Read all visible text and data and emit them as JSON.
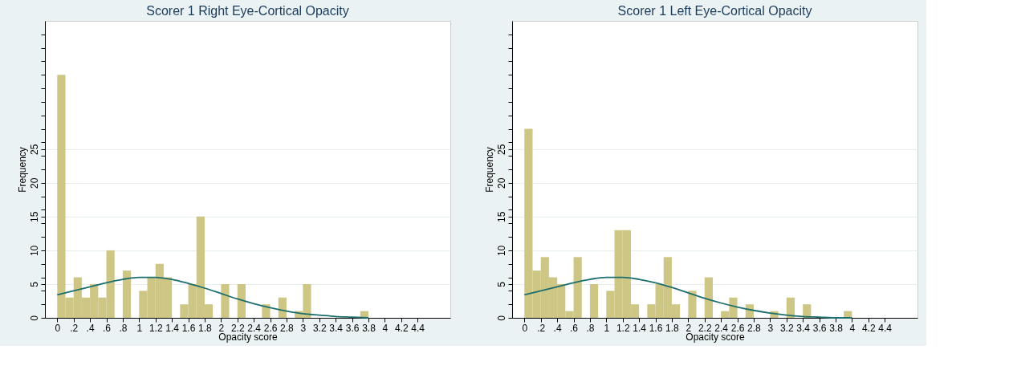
{
  "chart_data": [
    {
      "type": "histogram",
      "title": "Scorer 1 Right Eye-Cortical Opacity",
      "xlabel": "Opacity score",
      "ylabel": "Frequency",
      "bins": [
        0,
        0.1,
        0.2,
        0.3,
        0.4,
        0.5,
        0.6,
        0.7,
        0.8,
        0.9,
        1.0,
        1.1,
        1.2,
        1.3,
        1.4,
        1.5,
        1.6,
        1.7,
        1.8,
        1.9,
        2.0,
        2.1,
        2.2,
        2.3,
        2.4,
        2.5,
        2.6,
        2.7,
        2.8,
        2.9,
        3.0,
        3.1,
        3.2,
        3.3,
        3.4,
        3.5,
        3.6,
        3.7,
        3.8
      ],
      "values": [
        36,
        3,
        6,
        3,
        5,
        3,
        10,
        0,
        7,
        0,
        4,
        6,
        8,
        6,
        0,
        2,
        5,
        15,
        2,
        0,
        5,
        0,
        5,
        0,
        0,
        2,
        0,
        3,
        0,
        1,
        5,
        0,
        0,
        0,
        0,
        0,
        0,
        1
      ],
      "color": "#cdc684",
      "series": [
        {
          "type": "line",
          "color": "#1e6e6e",
          "x": [
            0,
            0.2,
            0.4,
            0.6,
            0.8,
            1.0,
            1.2,
            1.4,
            1.6,
            1.8,
            2.0,
            2.2,
            2.4,
            2.6,
            2.8,
            3.0,
            3.2,
            3.4,
            3.6,
            3.8
          ],
          "values": [
            3.4,
            4.0,
            4.6,
            5.2,
            5.7,
            6.0,
            6.0,
            5.7,
            5.1,
            4.4,
            3.6,
            2.8,
            2.1,
            1.5,
            1.0,
            0.6,
            0.4,
            0.2,
            0.1,
            0.0
          ]
        }
      ],
      "xlim": [
        -0.15,
        4.8
      ],
      "xticks": [
        0,
        {
          "value": 0.2,
          "label": ".2"
        },
        {
          "value": 0.4,
          "label": ".4"
        },
        {
          "value": 0.6,
          "label": ".6"
        },
        {
          "value": 0.8,
          "label": ".8"
        },
        1,
        1.2,
        1.4,
        1.6,
        1.8,
        2,
        2.2,
        2.4,
        2.6,
        2.8,
        3,
        3.2,
        3.4,
        3.6,
        3.8,
        4,
        4.2,
        4.4
      ],
      "ylim": [
        0,
        44
      ],
      "yticks": [
        0,
        {
          "value": 2,
          "label": null
        },
        {
          "value": 4,
          "label": null
        },
        5,
        {
          "value": 6,
          "label": null
        },
        {
          "value": 8,
          "label": null
        },
        10,
        {
          "value": 12,
          "label": null
        },
        {
          "value": 14,
          "label": null
        },
        15,
        {
          "value": 16,
          "label": null
        },
        {
          "value": 18,
          "label": null
        },
        20,
        {
          "value": 22,
          "label": null
        },
        {
          "value": 24,
          "label": null
        },
        25,
        {
          "value": 26,
          "label": null
        },
        {
          "value": 28,
          "label": null
        },
        {
          "value": 30,
          "label": null
        },
        {
          "value": 32,
          "label": null
        },
        {
          "value": 34,
          "label": null
        },
        {
          "value": 36,
          "label": null
        },
        {
          "value": 38,
          "label": null
        },
        {
          "value": 40,
          "label": null
        },
        {
          "value": 42,
          "label": null
        }
      ],
      "grid": "y"
    },
    {
      "type": "histogram",
      "title": "Scorer 1 Left  Eye-Cortical Opacity",
      "xlabel": "Opacity score",
      "ylabel": "Frequency",
      "bins": [
        0,
        0.1,
        0.2,
        0.3,
        0.4,
        0.5,
        0.6,
        0.7,
        0.8,
        0.9,
        1.0,
        1.1,
        1.2,
        1.3,
        1.4,
        1.5,
        1.6,
        1.7,
        1.8,
        1.9,
        2.0,
        2.1,
        2.2,
        2.3,
        2.4,
        2.5,
        2.6,
        2.7,
        2.8,
        2.9,
        3.0,
        3.1,
        3.2,
        3.3,
        3.4,
        3.5,
        3.6,
        3.7,
        3.8,
        3.9,
        4.0
      ],
      "values": [
        28,
        7,
        9,
        6,
        5,
        1,
        9,
        0,
        5,
        0,
        4,
        13,
        13,
        2,
        0,
        2,
        5,
        9,
        2,
        0,
        4,
        0,
        6,
        0,
        1,
        3,
        0,
        2,
        0,
        0,
        1,
        0,
        3,
        0,
        2,
        0,
        0,
        0,
        0,
        1
      ],
      "color": "#cdc684",
      "series": [
        {
          "type": "line",
          "color": "#1e6e6e",
          "x": [
            0,
            0.2,
            0.4,
            0.6,
            0.8,
            1.0,
            1.2,
            1.4,
            1.6,
            1.8,
            2.0,
            2.2,
            2.4,
            2.6,
            2.8,
            3.0,
            3.2,
            3.4,
            3.6,
            3.8,
            4.0
          ],
          "values": [
            3.4,
            4.0,
            4.6,
            5.2,
            5.7,
            6.0,
            6.0,
            5.7,
            5.2,
            4.5,
            3.7,
            2.9,
            2.2,
            1.6,
            1.1,
            0.7,
            0.4,
            0.2,
            0.1,
            0.0,
            0.0
          ]
        }
      ],
      "xlim": [
        -0.15,
        4.8
      ],
      "xticks": [
        0,
        {
          "value": 0.2,
          "label": ".2"
        },
        {
          "value": 0.4,
          "label": ".4"
        },
        {
          "value": 0.6,
          "label": ".6"
        },
        {
          "value": 0.8,
          "label": ".8"
        },
        1,
        1.2,
        1.4,
        1.6,
        1.8,
        2,
        2.2,
        2.4,
        2.6,
        2.8,
        3,
        3.2,
        3.4,
        3.6,
        3.8,
        4,
        4.2,
        4.4
      ],
      "ylim": [
        0,
        44
      ],
      "yticks": [
        0,
        {
          "value": 2,
          "label": null
        },
        {
          "value": 4,
          "label": null
        },
        5,
        {
          "value": 6,
          "label": null
        },
        {
          "value": 8,
          "label": null
        },
        10,
        {
          "value": 12,
          "label": null
        },
        {
          "value": 14,
          "label": null
        },
        15,
        {
          "value": 16,
          "label": null
        },
        {
          "value": 18,
          "label": null
        },
        20,
        {
          "value": 22,
          "label": null
        },
        {
          "value": 24,
          "label": null
        },
        25,
        {
          "value": 26,
          "label": null
        },
        {
          "value": 28,
          "label": null
        },
        {
          "value": 30,
          "label": null
        },
        {
          "value": 32,
          "label": null
        },
        {
          "value": 34,
          "label": null
        },
        {
          "value": 36,
          "label": null
        },
        {
          "value": 38,
          "label": null
        },
        {
          "value": 40,
          "label": null
        },
        {
          "value": 42,
          "label": null
        }
      ],
      "grid": "y"
    }
  ]
}
